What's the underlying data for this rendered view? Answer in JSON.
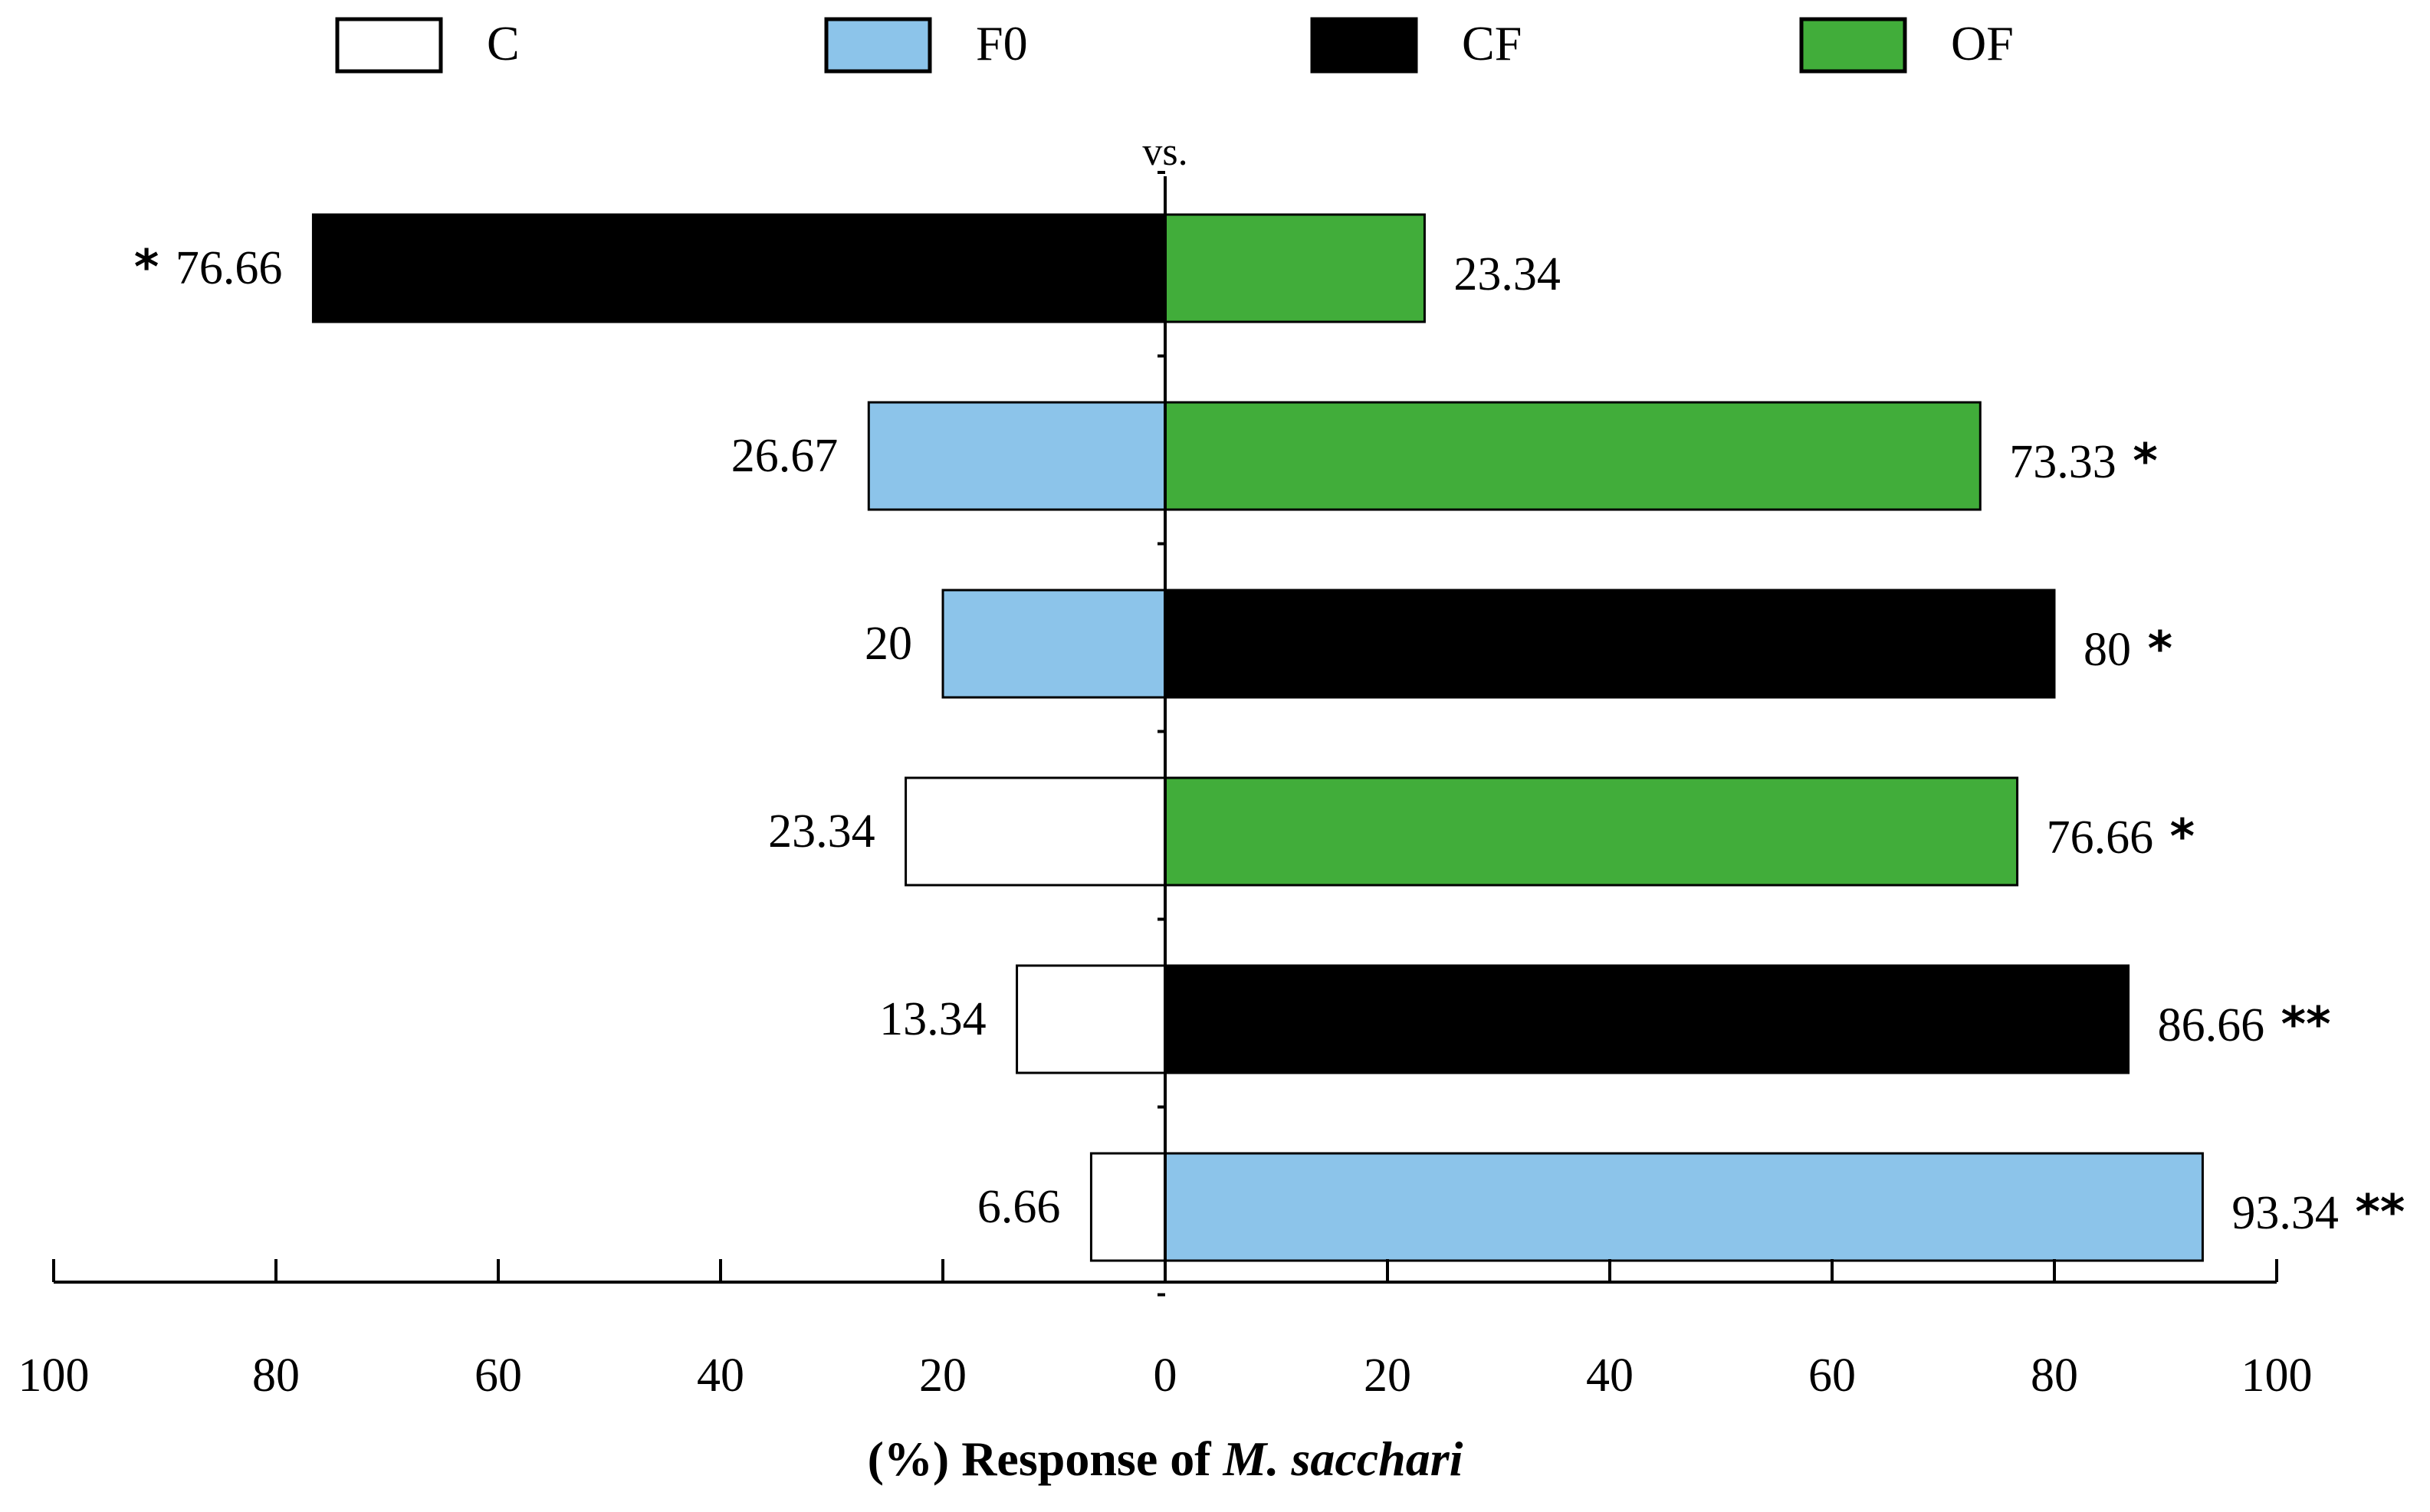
{
  "chart_data": {
    "type": "bar",
    "orientation": "horizontal-diverging",
    "legend": [
      {
        "key": "C",
        "label": "C",
        "color": "#ffffff"
      },
      {
        "key": "F0",
        "label": "F0",
        "color": "#8cc4ea"
      },
      {
        "key": "CF",
        "label": "CF",
        "color": "#000000"
      },
      {
        "key": "OF",
        "label": "OF",
        "color": "#41ad3a"
      }
    ],
    "legend_position": "top",
    "center_label": "vs.",
    "comparisons": [
      {
        "left": {
          "treatment": "CF",
          "value": 76.66,
          "label": "76.66",
          "sig": "*"
        },
        "right": {
          "treatment": "OF",
          "value": 23.34,
          "label": "23.34",
          "sig": ""
        }
      },
      {
        "left": {
          "treatment": "F0",
          "value": 26.67,
          "label": "26.67",
          "sig": ""
        },
        "right": {
          "treatment": "OF",
          "value": 73.33,
          "label": "73.33",
          "sig": "*"
        }
      },
      {
        "left": {
          "treatment": "F0",
          "value": 20,
          "label": "20",
          "sig": ""
        },
        "right": {
          "treatment": "CF",
          "value": 80,
          "label": "80",
          "sig": "*"
        }
      },
      {
        "left": {
          "treatment": "C",
          "value": 23.34,
          "label": "23.34",
          "sig": ""
        },
        "right": {
          "treatment": "OF",
          "value": 76.66,
          "label": "76.66",
          "sig": "*"
        }
      },
      {
        "left": {
          "treatment": "C",
          "value": 13.34,
          "label": "13.34",
          "sig": ""
        },
        "right": {
          "treatment": "CF",
          "value": 86.66,
          "label": "86.66",
          "sig": "**"
        }
      },
      {
        "left": {
          "treatment": "C",
          "value": 6.66,
          "label": "6.66",
          "sig": ""
        },
        "right": {
          "treatment": "F0",
          "value": 93.34,
          "label": "93.34",
          "sig": "**"
        }
      }
    ],
    "x_range": [
      -100,
      100
    ],
    "x_ticks": [
      -100,
      -80,
      -60,
      -40,
      -20,
      0,
      20,
      40,
      60,
      80,
      100
    ],
    "x_tick_labels": [
      "100",
      "80",
      "60",
      "40",
      "20",
      "0",
      "20",
      "40",
      "60",
      "80",
      "100"
    ],
    "xlabel_prefix": "(%) Response of ",
    "xlabel_species": "M. sacchari",
    "grid": false
  }
}
